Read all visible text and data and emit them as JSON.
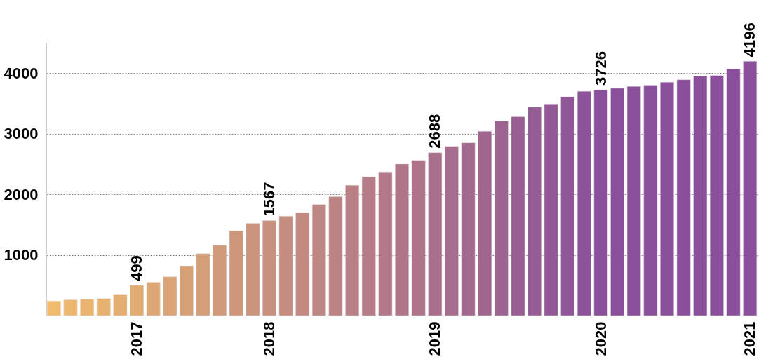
{
  "chart_data": {
    "type": "bar",
    "categories": [
      null,
      null,
      null,
      null,
      null,
      "2017",
      null,
      null,
      null,
      null,
      null,
      null,
      null,
      "2018",
      null,
      null,
      null,
      null,
      null,
      null,
      null,
      null,
      null,
      "2019",
      null,
      null,
      null,
      null,
      null,
      null,
      null,
      null,
      null,
      "2020",
      null,
      null,
      null,
      null,
      null,
      null,
      null,
      null,
      "2021"
    ],
    "values": [
      240,
      260,
      270,
      280,
      350,
      499,
      550,
      640,
      820,
      1020,
      1160,
      1400,
      1520,
      1567,
      1640,
      1700,
      1830,
      1960,
      2150,
      2290,
      2370,
      2500,
      2560,
      2688,
      2790,
      2850,
      3040,
      3210,
      3280,
      3440,
      3490,
      3610,
      3700,
      3726,
      3750,
      3780,
      3800,
      3850,
      3890,
      3950,
      3960,
      4070,
      4196
    ],
    "value_labels": [
      null,
      null,
      null,
      null,
      null,
      "499",
      null,
      null,
      null,
      null,
      null,
      null,
      null,
      "1567",
      null,
      null,
      null,
      null,
      null,
      null,
      null,
      null,
      null,
      "2688",
      null,
      null,
      null,
      null,
      null,
      null,
      null,
      null,
      null,
      "3726",
      null,
      null,
      null,
      null,
      null,
      null,
      null,
      null,
      "4196"
    ],
    "colors": [
      "#f0bb6d",
      "#edb86e",
      "#eab470",
      "#e7b171",
      "#e4ae72",
      "#e1ab74",
      "#dda775",
      "#daa477",
      "#d7a178",
      "#d49e79",
      "#d19a7b",
      "#ce977c",
      "#cb947d",
      "#c8907f",
      "#c58d80",
      "#c28a81",
      "#bf8783",
      "#bb8384",
      "#b88085",
      "#b57d87",
      "#b27a88",
      "#af768a",
      "#ac738b",
      "#a9708c",
      "#a66d8e",
      "#a3698f",
      "#a06690",
      "#9d6392",
      "#995f93",
      "#965c95",
      "#935996",
      "#905697",
      "#8d5299",
      "#8a4f9a",
      "#8a4f9a",
      "#8a4f9a",
      "#8a4f9a",
      "#8a4f9a",
      "#8a4f9a",
      "#8a4f9a",
      "#8a4f9a",
      "#8a4f9a",
      "#8a4f9a"
    ],
    "ylim": [
      0,
      4500
    ],
    "yticks": [
      1000,
      2000,
      3000,
      4000
    ],
    "grid": "y"
  }
}
